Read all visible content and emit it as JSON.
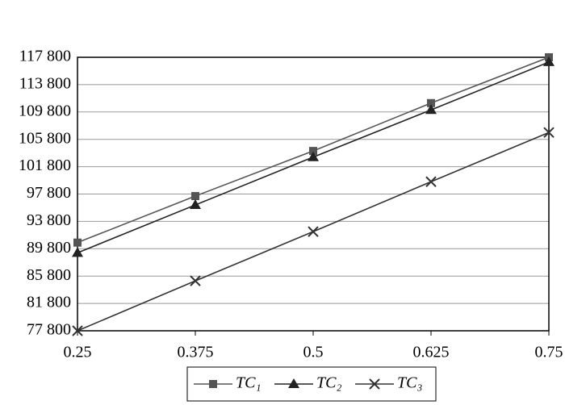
{
  "chart_data": {
    "type": "line",
    "x": [
      0.25,
      0.375,
      0.5,
      0.625,
      0.75
    ],
    "xlim": [
      0.25,
      0.75
    ],
    "xticks": [
      0.25,
      0.375,
      0.5,
      0.625,
      0.75
    ],
    "ylim": [
      77800,
      117800
    ],
    "yticks": [
      {
        "value": 77800,
        "label": "77 800"
      },
      {
        "value": 81800,
        "label": "81 800"
      },
      {
        "value": 85800,
        "label": "85 800"
      },
      {
        "value": 89800,
        "label": "89 800"
      },
      {
        "value": 93800,
        "label": "93 800"
      },
      {
        "value": 97800,
        "label": "97 800"
      },
      {
        "value": 101800,
        "label": "101 800"
      },
      {
        "value": 105800,
        "label": "105 800"
      },
      {
        "value": 109800,
        "label": "109 800"
      },
      {
        "value": 113800,
        "label": "113 800"
      },
      {
        "value": 117800,
        "label": "117 800"
      }
    ],
    "grid": true,
    "legend": "bottom",
    "series": [
      {
        "name": "TC₁",
        "color": "#555555",
        "marker": "square",
        "values": [
          90700,
          97500,
          104100,
          111100,
          117800
        ]
      },
      {
        "name": "TC₂",
        "color": "#222222",
        "marker": "triangle",
        "values": [
          89200,
          96200,
          103200,
          110100,
          117100
        ]
      },
      {
        "name": "TC₃",
        "color": "#333333",
        "marker": "x",
        "values": [
          77800,
          85100,
          92300,
          99600,
          106800
        ]
      }
    ]
  }
}
